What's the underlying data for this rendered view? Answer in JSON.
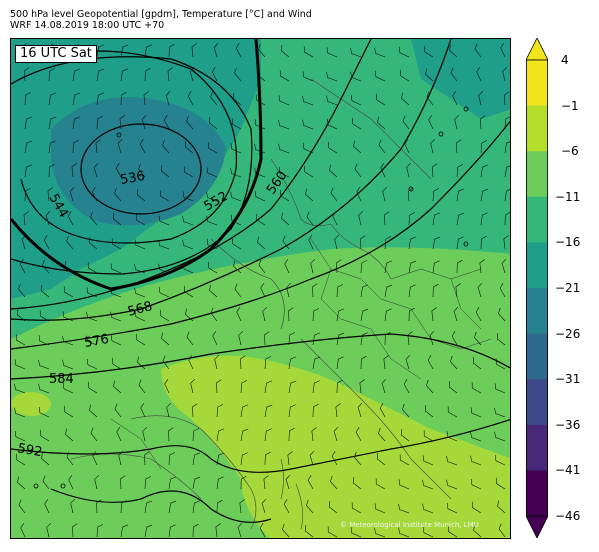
{
  "title": {
    "line1": "500 hPa level Geopotential [gpdm], Temperature [°C] and Wind",
    "line2": "WRF 14.08.2019 18:00 UTC +70"
  },
  "time_label": "16 UTC Sat",
  "copyright": "© Meteorological Institute Munich, LMU",
  "contour_labels": [
    "536",
    "544",
    "552",
    "560",
    "568",
    "576",
    "584",
    "592"
  ],
  "colorbar": {
    "ticks": [
      "4",
      "−1",
      "−6",
      "−11",
      "−16",
      "−21",
      "−26",
      "−31",
      "−36",
      "−41",
      "−46"
    ],
    "colors": [
      "#f0e51d",
      "#b5de2b",
      "#6ccd5a",
      "#35b779",
      "#1f9e89",
      "#26828e",
      "#31688e",
      "#3e4989",
      "#482878",
      "#440154"
    ]
  },
  "field_colors": {
    "cold_core": "#26828e",
    "cool": "#1f9e89",
    "mid": "#35b779",
    "warm": "#6ccd5a",
    "hot": "#a5d93a"
  }
}
